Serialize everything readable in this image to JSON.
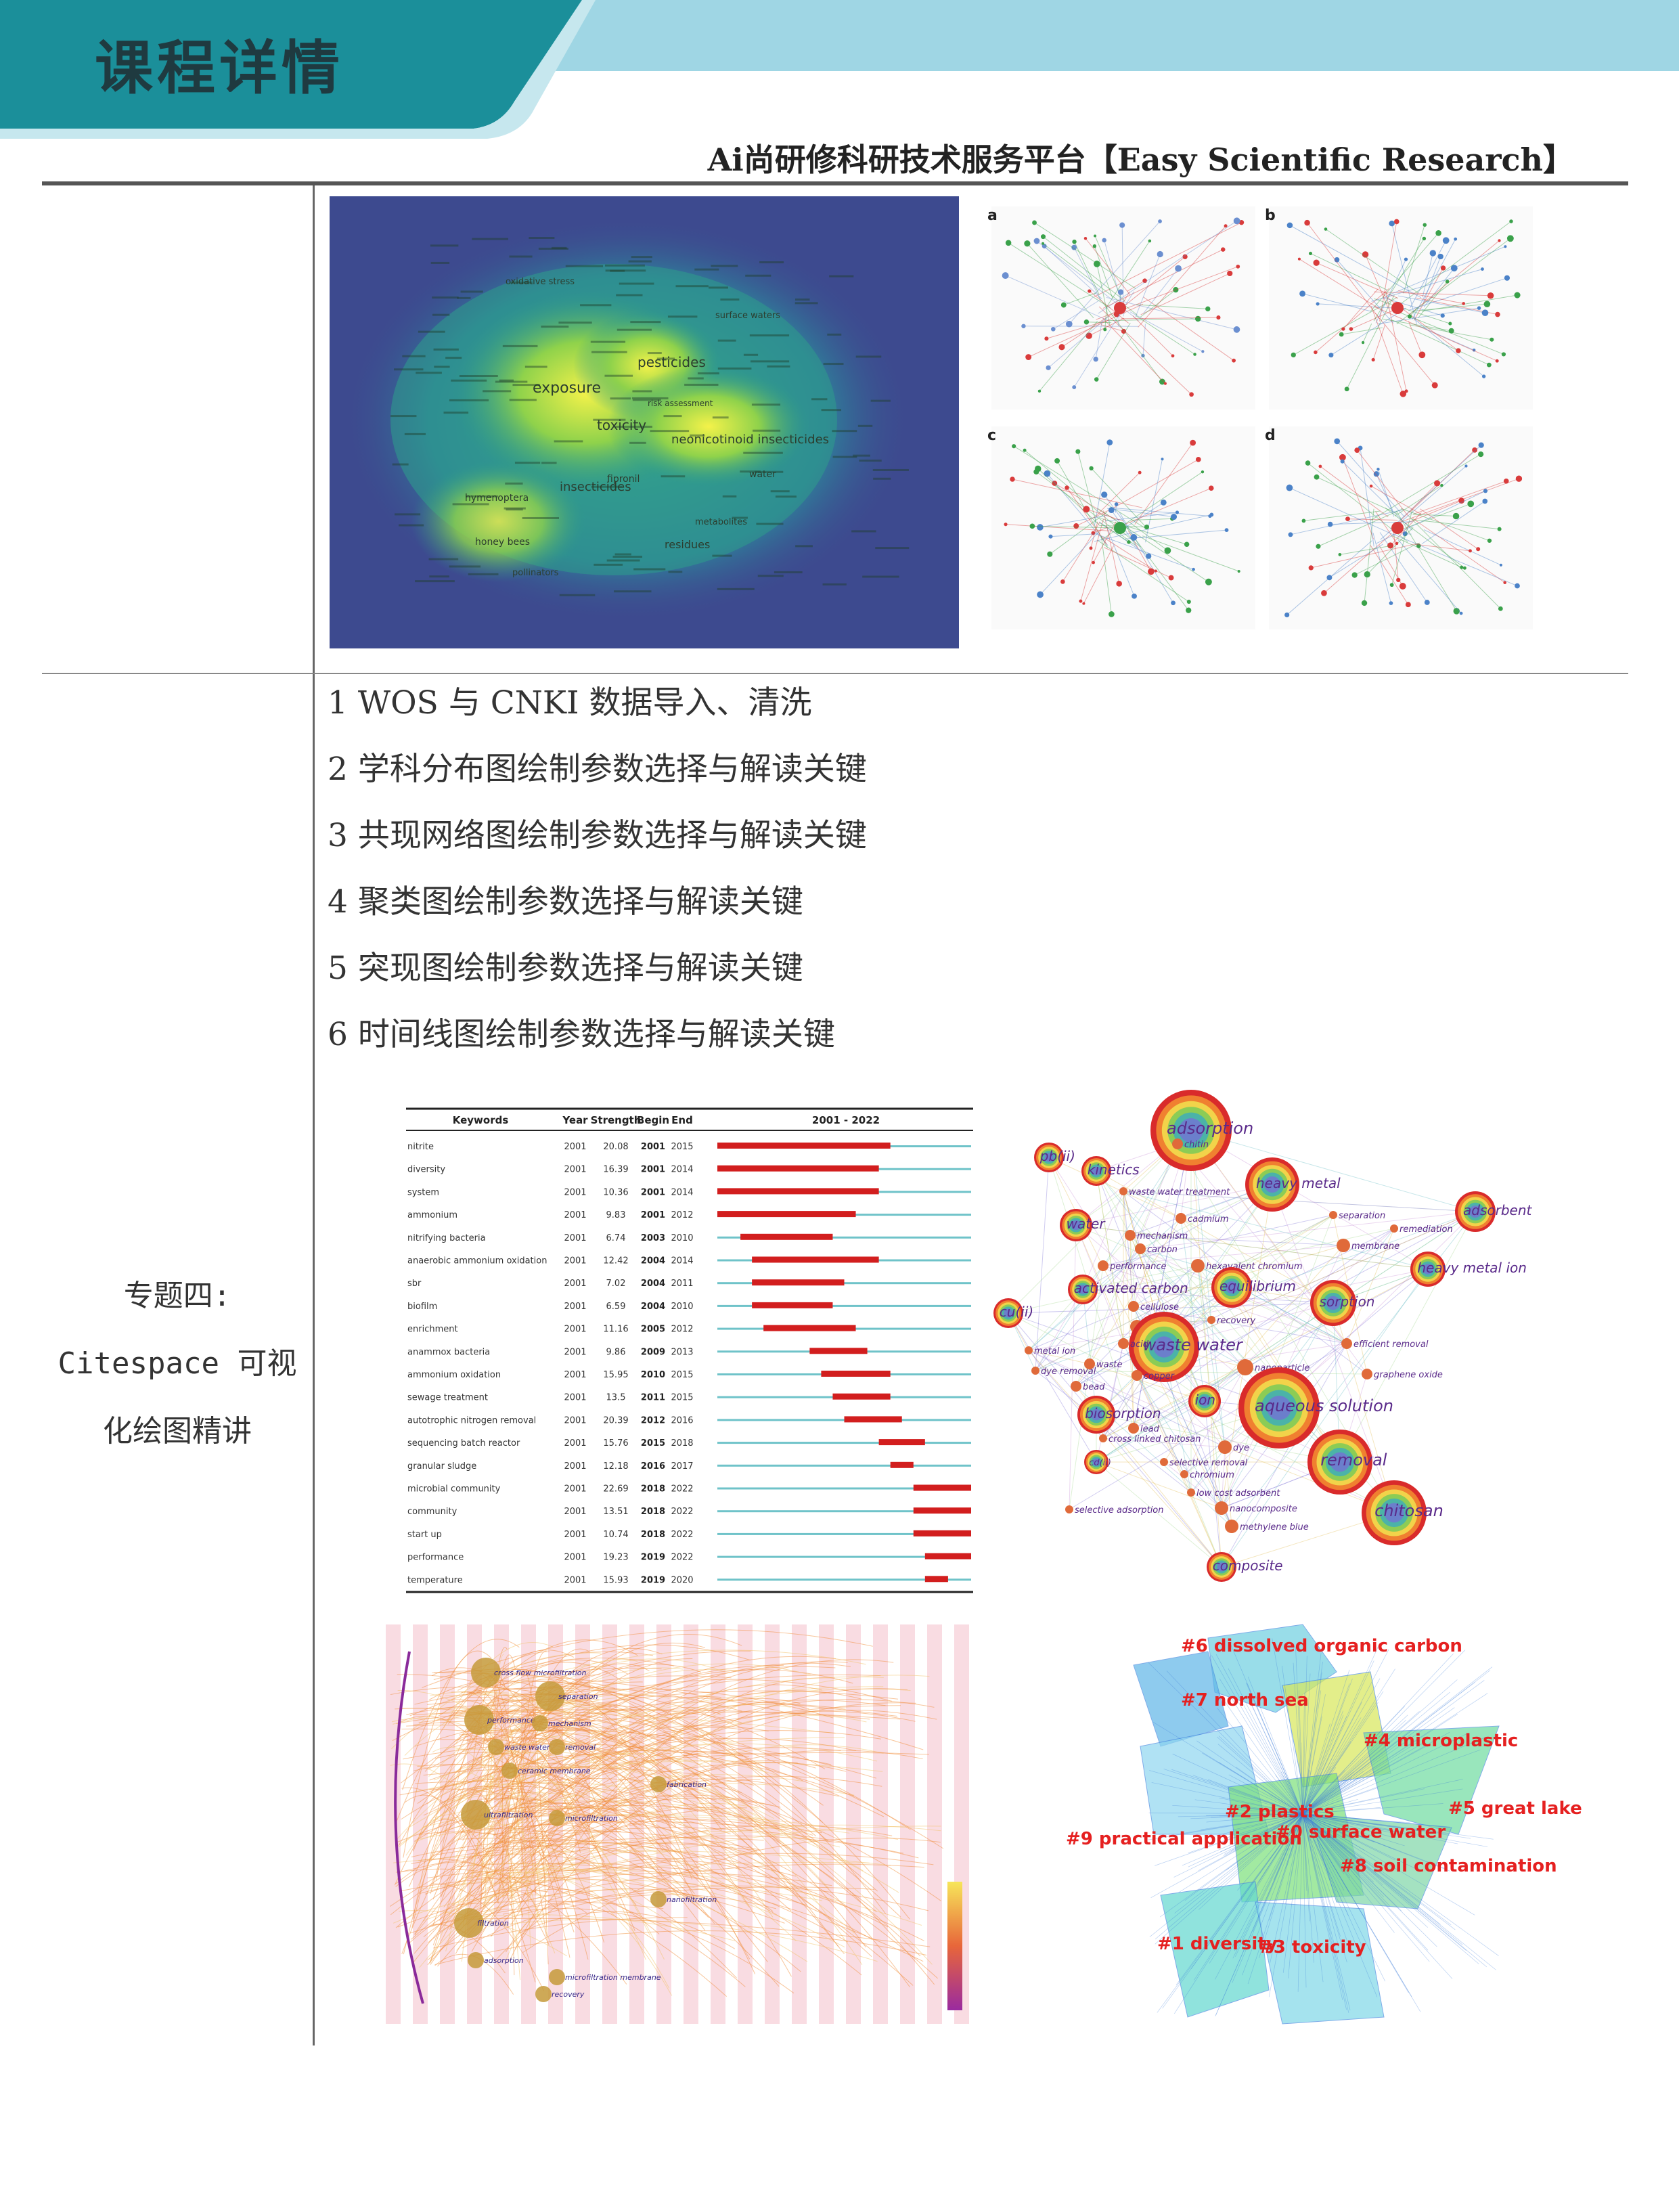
{
  "header": {
    "title": "课程详情",
    "subtitle": "Ai尚研修科研技术服务平台【Easy Scientific Research】",
    "colors": {
      "teal": "#1b8f9a",
      "light_band": "#9fd6e4",
      "bg": "#ffffff"
    }
  },
  "topic": {
    "line1": "专题四:",
    "line2": "Citespace 可视",
    "line3": "化绘图精讲"
  },
  "steps": [
    "1 WOS 与 CNKI 数据导入、清洗",
    "2 学科分布图绘制参数选择与解读关键",
    "3 共现网络图绘制参数选择与解读关键",
    "4 聚类图绘制参数选择与解读关键",
    "5 突现图绘制参数选择与解读关键",
    "6 时间线图绘制参数选择与解读关键"
  ],
  "density_map": {
    "labels": [
      "exposure",
      "pesticides",
      "toxicity",
      "neonicotinoid insecticides",
      "insecticides",
      "surface waters",
      "oxidative stress",
      "water",
      "residues",
      "honey bees",
      "fipronil",
      "metabolites",
      "risk assessment",
      "hymenoptera",
      "pollinators"
    ]
  },
  "network_panels": {
    "labels": [
      "a",
      "b",
      "c",
      "d"
    ]
  },
  "burst_table": {
    "headers": [
      "Keywords",
      "Year",
      "Strength",
      "Begin",
      "End",
      "2001 - 2022"
    ],
    "rows": [
      {
        "keyword": "nitrite",
        "year": "2001",
        "strength": "20.08",
        "begin": "2001",
        "end": "2015"
      },
      {
        "keyword": "diversity",
        "year": "2001",
        "strength": "16.39",
        "begin": "2001",
        "end": "2014"
      },
      {
        "keyword": "system",
        "year": "2001",
        "strength": "10.36",
        "begin": "2001",
        "end": "2014"
      },
      {
        "keyword": "ammonium",
        "year": "2001",
        "strength": "9.83",
        "begin": "2001",
        "end": "2012"
      },
      {
        "keyword": "nitrifying bacteria",
        "year": "2001",
        "strength": "6.74",
        "begin": "2003",
        "end": "2010"
      },
      {
        "keyword": "anaerobic ammonium oxidation",
        "year": "2001",
        "strength": "12.42",
        "begin": "2004",
        "end": "2014"
      },
      {
        "keyword": "sbr",
        "year": "2001",
        "strength": "7.02",
        "begin": "2004",
        "end": "2011"
      },
      {
        "keyword": "biofilm",
        "year": "2001",
        "strength": "6.59",
        "begin": "2004",
        "end": "2010"
      },
      {
        "keyword": "enrichment",
        "year": "2001",
        "strength": "11.16",
        "begin": "2005",
        "end": "2012"
      },
      {
        "keyword": "anammox bacteria",
        "year": "2001",
        "strength": "9.86",
        "begin": "2009",
        "end": "2013"
      },
      {
        "keyword": "ammonium oxidation",
        "year": "2001",
        "strength": "15.95",
        "begin": "2010",
        "end": "2015"
      },
      {
        "keyword": "sewage treatment",
        "year": "2001",
        "strength": "13.5",
        "begin": "2011",
        "end": "2015"
      },
      {
        "keyword": "autotrophic nitrogen removal",
        "year": "2001",
        "strength": "20.39",
        "begin": "2012",
        "end": "2016"
      },
      {
        "keyword": "sequencing batch reactor",
        "year": "2001",
        "strength": "15.76",
        "begin": "2015",
        "end": "2018"
      },
      {
        "keyword": "granular sludge",
        "year": "2001",
        "strength": "12.18",
        "begin": "2016",
        "end": "2017"
      },
      {
        "keyword": "microbial community",
        "year": "2001",
        "strength": "22.69",
        "begin": "2018",
        "end": "2022"
      },
      {
        "keyword": "community",
        "year": "2001",
        "strength": "13.51",
        "begin": "2018",
        "end": "2022"
      },
      {
        "keyword": "start up",
        "year": "2001",
        "strength": "10.74",
        "begin": "2018",
        "end": "2022"
      },
      {
        "keyword": "performance",
        "year": "2001",
        "strength": "19.23",
        "begin": "2019",
        "end": "2022"
      },
      {
        "keyword": "temperature",
        "year": "2001",
        "strength": "15.93",
        "begin": "2019",
        "end": "2020"
      }
    ],
    "colors": {
      "burst": "#d21e1e",
      "base": "#6fc3c9"
    }
  },
  "cooccurrence": {
    "labels": [
      "adsorption",
      "heavy metal",
      "adsorbent",
      "chitin",
      "pb(ii)",
      "kinetics",
      "waste water treatment",
      "water",
      "cadmium",
      "mechanism",
      "carbon",
      "separation",
      "remediation",
      "membrane",
      "heavy metal ion",
      "performance",
      "hexavalent chromium",
      "activated carbon",
      "equilibrium",
      "sorption",
      "cu(ii)",
      "cellulose",
      "cr(vi)",
      "recovery",
      "waste water",
      "efficient removal",
      "metal ion",
      "acid",
      "nanoparticle",
      "graphene oxide",
      "dye removal",
      "waste",
      "copper",
      "bead",
      "biosorption",
      "ion",
      "aqueous solution",
      "lead",
      "cross linked chitosan",
      "dye",
      "removal",
      "cd(ii)",
      "selective removal",
      "chromium",
      "low cost adsorbent",
      "chitosan",
      "selective adsorption",
      "nanocomposite",
      "methylene blue",
      "composite"
    ]
  },
  "timeline": {
    "labels": [
      "cross flow microfiltration",
      "separation",
      "performance",
      "mechanism",
      "removal",
      "waste water",
      "ceramic membrane",
      "ultrafiltration",
      "microfiltration",
      "fabrication",
      "nanofiltration",
      "filtration",
      "adsorption",
      "recovery",
      "microfiltration membrane"
    ]
  },
  "clusters": {
    "labels": [
      "#6 dissolved organic carbon",
      "#7 north sea",
      "#4 microplastic",
      "#5 great lake",
      "#2 plastics",
      "#9 practical application",
      "#0 surface water",
      "#8 soil contamination",
      "#1 diversity",
      "#3 toxicity"
    ]
  }
}
